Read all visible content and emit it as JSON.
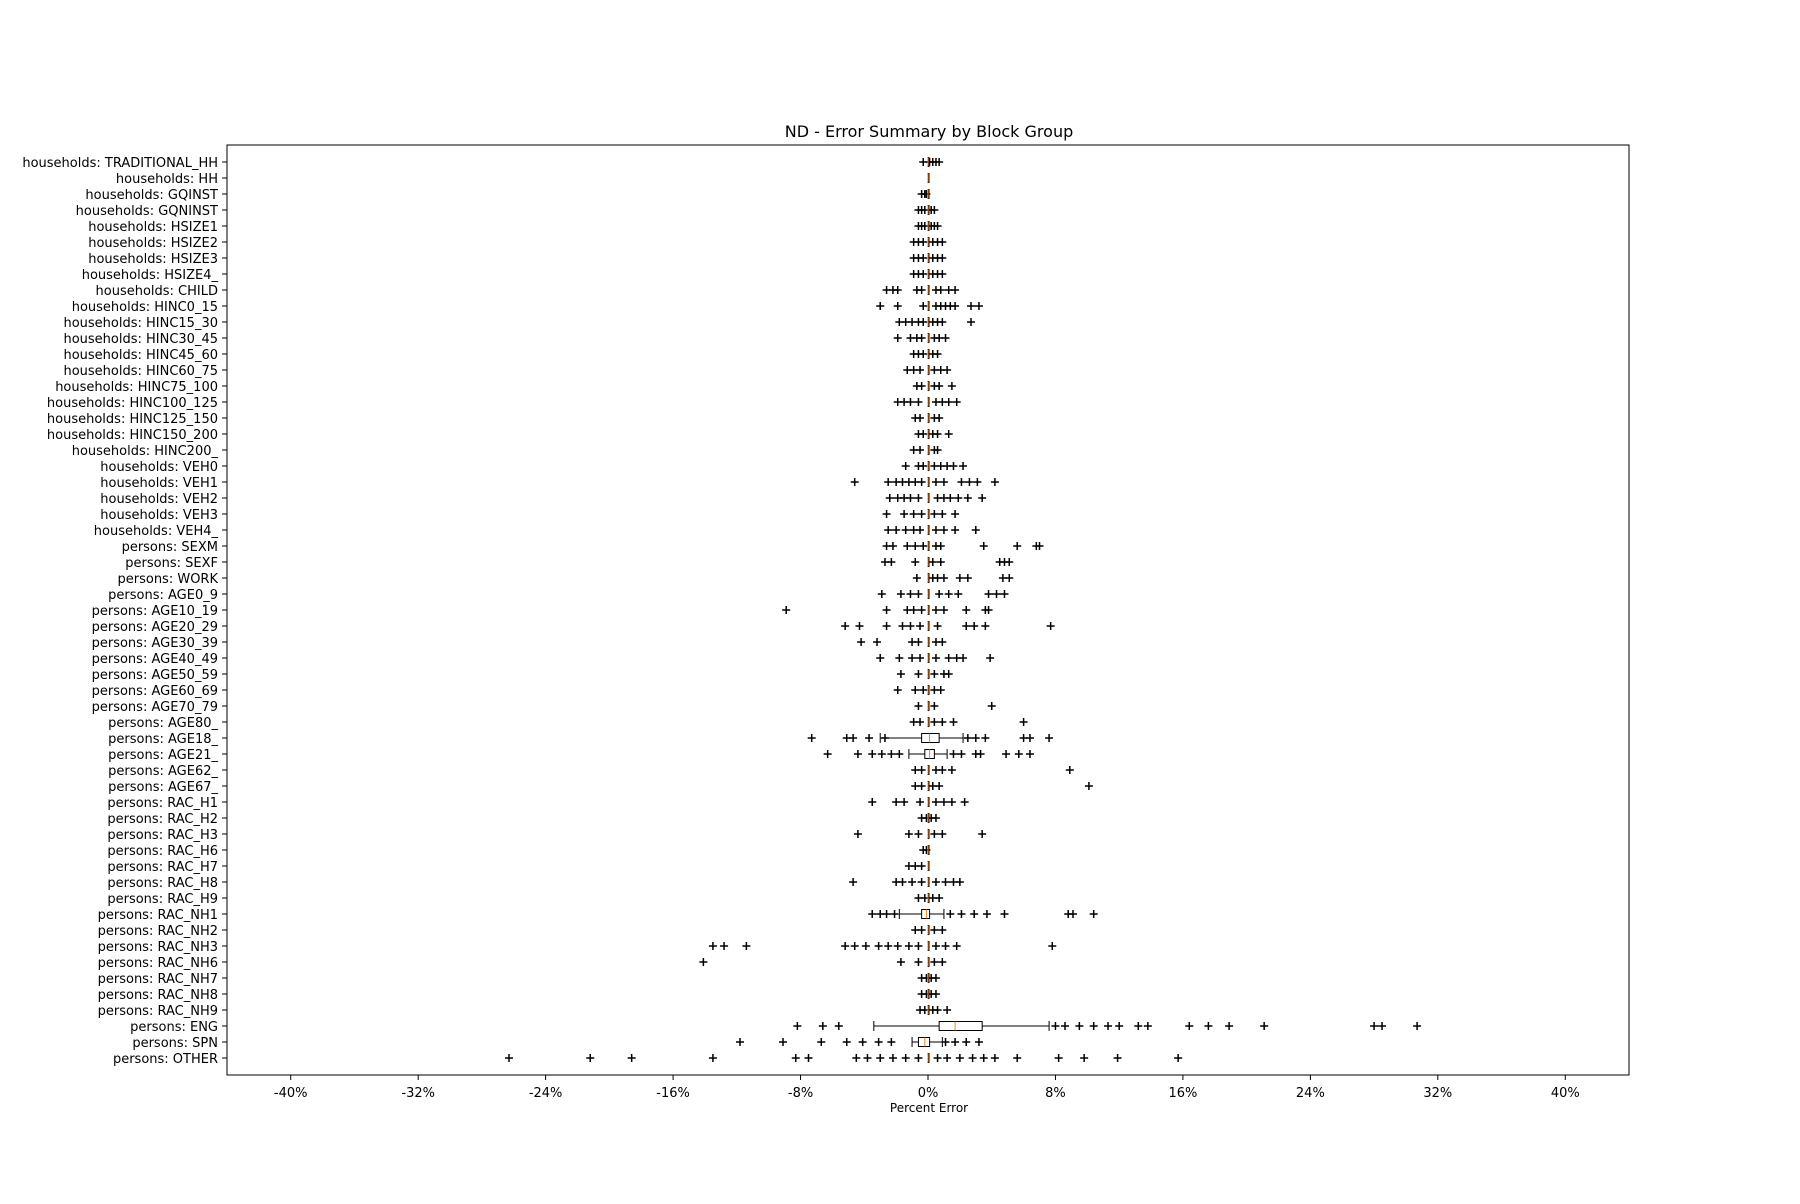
{
  "chart_data": {
    "type": "boxplot",
    "orientation": "horizontal",
    "title": "ND - Error Summary by Block Group",
    "xlabel": "Percent Error",
    "ylabel": "",
    "xlim": [
      -44,
      44
    ],
    "xticks": [
      -40,
      -32,
      -24,
      -16,
      -8,
      0,
      8,
      16,
      24,
      32,
      40
    ],
    "xtick_labels": [
      "-40%",
      "-32%",
      "-24%",
      "-16%",
      "-8%",
      "0%",
      "8%",
      "16%",
      "24%",
      "32%",
      "40%"
    ],
    "grid": false,
    "legend": "none",
    "colors": {
      "box": "#000000",
      "median": "#ff7f0e",
      "flier": "#000000"
    },
    "categories": [
      "households: TRADITIONAL_HH",
      "households: HH",
      "households: GQINST",
      "households: GQNINST",
      "households: HSIZE1",
      "households: HSIZE2",
      "households: HSIZE3",
      "households: HSIZE4_",
      "households: CHILD",
      "households: HINC0_15",
      "households: HINC15_30",
      "households: HINC30_45",
      "households: HINC45_60",
      "households: HINC60_75",
      "households: HINC75_100",
      "households: HINC100_125",
      "households: HINC125_150",
      "households: HINC150_200",
      "households: HINC200_",
      "households: VEH0",
      "households: VEH1",
      "households: VEH2",
      "households: VEH3",
      "households: VEH4_",
      "persons: SEXM",
      "persons: SEXF",
      "persons: WORK",
      "persons: AGE0_9",
      "persons: AGE10_19",
      "persons: AGE20_29",
      "persons: AGE30_39",
      "persons: AGE40_49",
      "persons: AGE50_59",
      "persons: AGE60_69",
      "persons: AGE70_79",
      "persons: AGE80_",
      "persons: AGE18_",
      "persons: AGE21_",
      "persons: AGE62_",
      "persons: AGE67_",
      "persons: RAC_H1",
      "persons: RAC_H2",
      "persons: RAC_H3",
      "persons: RAC_H6",
      "persons: RAC_H7",
      "persons: RAC_H8",
      "persons: RAC_H9",
      "persons: RAC_NH1",
      "persons: RAC_NH2",
      "persons: RAC_NH3",
      "persons: RAC_NH6",
      "persons: RAC_NH7",
      "persons: RAC_NH8",
      "persons: RAC_NH9",
      "persons: ENG",
      "persons: SPN",
      "persons: OTHER"
    ],
    "boxes": [
      {
        "whisker_low": 0,
        "q1": 0,
        "median": 0,
        "q3": 0,
        "whisker_high": 0,
        "fliers": [
          -0.3,
          0.1,
          0.3,
          0.5,
          0.7
        ]
      },
      {
        "whisker_low": 0,
        "q1": 0,
        "median": 0,
        "q3": 0,
        "whisker_high": 0,
        "fliers": []
      },
      {
        "whisker_low": 0,
        "q1": 0,
        "median": 0,
        "q3": 0,
        "whisker_high": 0,
        "fliers": [
          -0.4,
          -0.2,
          -0.1
        ]
      },
      {
        "whisker_low": 0,
        "q1": 0,
        "median": 0,
        "q3": 0,
        "whisker_high": 0,
        "fliers": [
          -0.6,
          -0.4,
          -0.2,
          0.2,
          0.4
        ]
      },
      {
        "whisker_low": 0,
        "q1": 0,
        "median": 0,
        "q3": 0,
        "whisker_high": 0,
        "fliers": [
          -0.6,
          -0.4,
          -0.2,
          0.2,
          0.4,
          0.6
        ]
      },
      {
        "whisker_low": 0,
        "q1": 0,
        "median": 0,
        "q3": 0,
        "whisker_high": 0,
        "fliers": [
          -0.9,
          -0.6,
          -0.3,
          0.3,
          0.6,
          0.9
        ]
      },
      {
        "whisker_low": 0,
        "q1": 0,
        "median": 0,
        "q3": 0,
        "whisker_high": 0,
        "fliers": [
          -0.9,
          -0.6,
          -0.3,
          0.3,
          0.6,
          0.9
        ]
      },
      {
        "whisker_low": 0,
        "q1": 0,
        "median": 0,
        "q3": 0,
        "whisker_high": 0,
        "fliers": [
          -0.9,
          -0.6,
          -0.3,
          0.3,
          0.6,
          0.9
        ]
      },
      {
        "whisker_low": 0,
        "q1": 0,
        "median": 0,
        "q3": 0,
        "whisker_high": 0,
        "fliers": [
          -2.6,
          -2.2,
          -1.9,
          -0.7,
          -0.4,
          0.5,
          0.8,
          1.3,
          1.7
        ]
      },
      {
        "whisker_low": 0,
        "q1": 0,
        "median": 0,
        "q3": 0,
        "whisker_high": 0,
        "fliers": [
          -3.0,
          -1.9,
          -0.3,
          0.5,
          0.8,
          1.1,
          1.4,
          1.7,
          2.7,
          3.2
        ]
      },
      {
        "whisker_low": 0,
        "q1": 0,
        "median": 0,
        "q3": 0,
        "whisker_high": 0,
        "fliers": [
          -1.8,
          -1.4,
          -1.0,
          -0.6,
          -0.3,
          0.3,
          0.6,
          0.9,
          2.7
        ]
      },
      {
        "whisker_low": 0,
        "q1": 0,
        "median": 0,
        "q3": 0,
        "whisker_high": 0,
        "fliers": [
          -1.9,
          -1.1,
          -0.7,
          -0.4,
          0.4,
          0.7,
          1.1
        ]
      },
      {
        "whisker_low": 0,
        "q1": 0,
        "median": 0,
        "q3": 0,
        "whisker_high": 0,
        "fliers": [
          -0.9,
          -0.6,
          -0.3,
          0.3,
          0.6
        ]
      },
      {
        "whisker_low": 0,
        "q1": 0,
        "median": 0,
        "q3": 0,
        "whisker_high": 0,
        "fliers": [
          -1.3,
          -0.9,
          -0.5,
          0.4,
          0.8,
          1.2
        ]
      },
      {
        "whisker_low": 0,
        "q1": 0,
        "median": 0,
        "q3": 0,
        "whisker_high": 0,
        "fliers": [
          -0.7,
          -0.4,
          0.4,
          0.7,
          1.5
        ]
      },
      {
        "whisker_low": 0,
        "q1": 0,
        "median": 0,
        "q3": 0,
        "whisker_high": 0,
        "fliers": [
          -1.9,
          -1.5,
          -1.1,
          -0.6,
          0.5,
          0.9,
          1.3,
          1.8
        ]
      },
      {
        "whisker_low": 0,
        "q1": 0,
        "median": 0,
        "q3": 0,
        "whisker_high": 0,
        "fliers": [
          -0.8,
          -0.5,
          0.4,
          0.7
        ]
      },
      {
        "whisker_low": 0,
        "q1": 0,
        "median": 0,
        "q3": 0,
        "whisker_high": 0,
        "fliers": [
          -0.6,
          -0.3,
          0.3,
          0.6,
          1.3
        ]
      },
      {
        "whisker_low": 0,
        "q1": 0,
        "median": 0,
        "q3": 0,
        "whisker_high": 0,
        "fliers": [
          -0.9,
          -0.5,
          0.4,
          0.6
        ]
      },
      {
        "whisker_low": 0,
        "q1": 0,
        "median": 0,
        "q3": 0,
        "whisker_high": 0,
        "fliers": [
          -1.4,
          -0.6,
          -0.3,
          0.4,
          0.8,
          1.2,
          1.6,
          2.2
        ]
      },
      {
        "whisker_low": 0,
        "q1": 0,
        "median": 0,
        "q3": 0,
        "whisker_high": 0,
        "fliers": [
          -4.6,
          -2.5,
          -2.0,
          -1.6,
          -1.2,
          -0.8,
          -0.4,
          0.5,
          1.0,
          2.1,
          2.6,
          3.1,
          4.2
        ]
      },
      {
        "whisker_low": 0,
        "q1": 0,
        "median": 0,
        "q3": 0,
        "whisker_high": 0,
        "fliers": [
          -2.4,
          -1.9,
          -1.5,
          -1.1,
          -0.6,
          0.6,
          1.0,
          1.4,
          1.9,
          2.5,
          3.4
        ]
      },
      {
        "whisker_low": 0,
        "q1": 0,
        "median": 0,
        "q3": 0,
        "whisker_high": 0,
        "fliers": [
          -2.6,
          -1.5,
          -0.9,
          -0.4,
          0.4,
          0.9,
          1.7
        ]
      },
      {
        "whisker_low": 0,
        "q1": 0,
        "median": 0,
        "q3": 0,
        "whisker_high": 0,
        "fliers": [
          -2.5,
          -2.0,
          -1.4,
          -0.9,
          -0.5,
          0.5,
          1.0,
          1.7,
          3.0
        ]
      },
      {
        "whisker_low": 0,
        "q1": 0,
        "median": 0,
        "q3": 0,
        "whisker_high": 0,
        "fliers": [
          -2.6,
          -2.2,
          -1.3,
          -0.8,
          -0.3,
          0.5,
          0.8,
          3.5,
          5.6,
          6.8,
          7.0
        ]
      },
      {
        "whisker_low": 0,
        "q1": 0,
        "median": 0,
        "q3": 0,
        "whisker_high": 0,
        "fliers": [
          -2.7,
          -2.3,
          -0.8,
          0.3,
          0.8,
          4.5,
          4.8,
          5.1
        ]
      },
      {
        "whisker_low": 0,
        "q1": 0,
        "median": 0,
        "q3": 0,
        "whisker_high": 0,
        "fliers": [
          -0.7,
          0.3,
          0.6,
          1.0,
          2.0,
          2.5,
          4.7,
          5.1
        ]
      },
      {
        "whisker_low": 0,
        "q1": 0,
        "median": 0,
        "q3": 0,
        "whisker_high": 0,
        "fliers": [
          -2.9,
          -1.7,
          -1.1,
          -0.6,
          0.7,
          1.3,
          1.9,
          3.8,
          4.3,
          4.8
        ]
      },
      {
        "whisker_low": 0,
        "q1": 0,
        "median": 0,
        "q3": 0,
        "whisker_high": 0,
        "fliers": [
          -8.9,
          -2.6,
          -1.3,
          -0.9,
          -0.4,
          0.5,
          1.0,
          2.4,
          3.6,
          3.8
        ]
      },
      {
        "whisker_low": 0,
        "q1": 0,
        "median": 0,
        "q3": 0,
        "whisker_high": 0,
        "fliers": [
          -5.2,
          -4.3,
          -2.6,
          -1.6,
          -1.1,
          -0.5,
          0.6,
          2.4,
          2.9,
          3.6,
          7.7
        ]
      },
      {
        "whisker_low": 0,
        "q1": 0,
        "median": 0,
        "q3": 0,
        "whisker_high": 0,
        "fliers": [
          -4.2,
          -3.2,
          -1.0,
          -0.6,
          0.5,
          0.9
        ]
      },
      {
        "whisker_low": 0,
        "q1": 0,
        "median": 0,
        "q3": 0,
        "whisker_high": 0,
        "fliers": [
          -3.0,
          -1.8,
          -1.0,
          -0.5,
          0.5,
          1.3,
          1.8,
          2.2,
          3.9
        ]
      },
      {
        "whisker_low": 0,
        "q1": 0,
        "median": 0,
        "q3": 0,
        "whisker_high": 0,
        "fliers": [
          -1.7,
          -0.6,
          0.4,
          1.0,
          1.3
        ]
      },
      {
        "whisker_low": 0,
        "q1": 0,
        "median": 0,
        "q3": 0,
        "whisker_high": 0,
        "fliers": [
          -1.9,
          -0.8,
          -0.3,
          0.4,
          0.8
        ]
      },
      {
        "whisker_low": 0,
        "q1": 0,
        "median": 0,
        "q3": 0,
        "whisker_high": 0,
        "fliers": [
          -0.6,
          0.4,
          4.0
        ]
      },
      {
        "whisker_low": 0,
        "q1": 0,
        "median": 0,
        "q3": 0,
        "whisker_high": 0,
        "fliers": [
          -0.9,
          -0.5,
          0.4,
          0.9,
          1.6,
          6.0
        ]
      },
      {
        "whisker_low": -3.0,
        "q1": -0.4,
        "median": 0.1,
        "q3": 0.7,
        "whisker_high": 2.2,
        "fliers": [
          -7.3,
          -5.1,
          -4.7,
          -3.7,
          -2.7,
          2.5,
          3.0,
          3.6,
          6.0,
          6.4,
          7.6
        ]
      },
      {
        "whisker_low": -1.2,
        "q1": -0.2,
        "median": 0.1,
        "q3": 0.4,
        "whisker_high": 1.2,
        "fliers": [
          -6.3,
          -4.4,
          -3.5,
          -2.9,
          -2.3,
          -1.8,
          1.6,
          2.1,
          3.0,
          3.3,
          4.9,
          5.7,
          6.4
        ]
      },
      {
        "whisker_low": 0,
        "q1": 0,
        "median": 0,
        "q3": 0,
        "whisker_high": 0,
        "fliers": [
          -0.8,
          -0.4,
          0.5,
          0.9,
          1.5,
          8.9
        ]
      },
      {
        "whisker_low": 0,
        "q1": 0,
        "median": 0,
        "q3": 0,
        "whisker_high": 0,
        "fliers": [
          -0.8,
          -0.4,
          0.3,
          0.7,
          10.1
        ]
      },
      {
        "whisker_low": 0,
        "q1": 0,
        "median": 0,
        "q3": 0,
        "whisker_high": 0,
        "fliers": [
          -3.5,
          -2.0,
          -1.5,
          -0.5,
          0.5,
          1.0,
          1.5,
          2.3
        ]
      },
      {
        "whisker_low": 0,
        "q1": 0,
        "median": 0,
        "q3": 0,
        "whisker_high": 0,
        "fliers": [
          -0.4,
          -0.1,
          0.2,
          0.5
        ]
      },
      {
        "whisker_low": 0,
        "q1": 0,
        "median": 0,
        "q3": 0,
        "whisker_high": 0,
        "fliers": [
          -4.4,
          -1.2,
          -0.6,
          0.4,
          0.9,
          3.4
        ]
      },
      {
        "whisker_low": 0,
        "q1": 0,
        "median": 0,
        "q3": 0,
        "whisker_high": 0,
        "fliers": [
          -0.3,
          -0.1
        ]
      },
      {
        "whisker_low": 0,
        "q1": 0,
        "median": 0,
        "q3": 0,
        "whisker_high": 0,
        "fliers": [
          -1.2,
          -0.8,
          -0.4
        ]
      },
      {
        "whisker_low": 0,
        "q1": 0,
        "median": 0,
        "q3": 0,
        "whisker_high": 0,
        "fliers": [
          -4.7,
          -2.0,
          -1.6,
          -1.0,
          -0.4,
          0.5,
          1.1,
          1.6,
          2.0
        ]
      },
      {
        "whisker_low": 0,
        "q1": 0,
        "median": 0,
        "q3": 0,
        "whisker_high": 0,
        "fliers": [
          -0.6,
          -0.2,
          0.3,
          0.7
        ]
      },
      {
        "whisker_low": -1.8,
        "q1": -0.4,
        "median": -0.1,
        "q3": 0.1,
        "whisker_high": 1.0,
        "fliers": [
          -3.5,
          -3.0,
          -2.6,
          -2.1,
          1.4,
          2.1,
          2.9,
          3.7,
          4.8,
          8.8,
          9.1,
          10.4
        ]
      },
      {
        "whisker_low": 0,
        "q1": 0,
        "median": 0,
        "q3": 0,
        "whisker_high": 0,
        "fliers": [
          -0.8,
          -0.4,
          0.4,
          0.9
        ]
      },
      {
        "whisker_low": 0,
        "q1": 0,
        "median": 0,
        "q3": 0,
        "whisker_high": 0,
        "fliers": [
          -13.5,
          -12.8,
          -11.4,
          -5.2,
          -4.6,
          -3.9,
          -3.1,
          -2.5,
          -1.9,
          -1.2,
          -0.6,
          0.5,
          1.1,
          1.8,
          7.8
        ]
      },
      {
        "whisker_low": 0,
        "q1": 0,
        "median": 0,
        "q3": 0,
        "whisker_high": 0,
        "fliers": [
          -14.1,
          -1.7,
          -0.6,
          0.4,
          0.9
        ]
      },
      {
        "whisker_low": 0,
        "q1": 0,
        "median": 0,
        "q3": 0,
        "whisker_high": 0,
        "fliers": [
          -0.4,
          -0.1,
          0.2,
          0.5
        ]
      },
      {
        "whisker_low": 0,
        "q1": 0,
        "median": 0,
        "q3": 0,
        "whisker_high": 0,
        "fliers": [
          -0.4,
          -0.1,
          0.2,
          0.5
        ]
      },
      {
        "whisker_low": 0,
        "q1": 0,
        "median": 0,
        "q3": 0,
        "whisker_high": 0,
        "fliers": [
          -0.5,
          -0.2,
          0.3,
          0.6,
          1.2
        ]
      },
      {
        "whisker_low": -3.4,
        "q1": 0.7,
        "median": 1.7,
        "q3": 3.4,
        "whisker_high": 7.6,
        "fliers": [
          -8.2,
          -6.6,
          -5.6,
          8.0,
          8.6,
          9.5,
          10.4,
          11.3,
          12.0,
          13.2,
          13.8,
          16.4,
          17.6,
          18.9,
          21.1,
          28.0,
          28.5,
          30.7
        ]
      },
      {
        "whisker_low": -1.0,
        "q1": -0.6,
        "median": -0.2,
        "q3": 0.1,
        "whisker_high": 0.9,
        "fliers": [
          -11.8,
          -9.1,
          -6.7,
          -5.1,
          -4.1,
          -3.1,
          -2.3,
          1.1,
          1.7,
          2.4,
          3.2
        ]
      },
      {
        "whisker_low": 0,
        "q1": 0,
        "median": 0,
        "q3": 0,
        "whisker_high": 0,
        "fliers": [
          -26.3,
          -21.2,
          -18.6,
          -13.5,
          -8.3,
          -7.5,
          -4.5,
          -3.8,
          -3.0,
          -2.2,
          -1.4,
          -0.6,
          0.6,
          1.2,
          2.0,
          2.8,
          3.5,
          4.2,
          5.6,
          8.2,
          9.8,
          11.9,
          15.7
        ]
      }
    ]
  }
}
